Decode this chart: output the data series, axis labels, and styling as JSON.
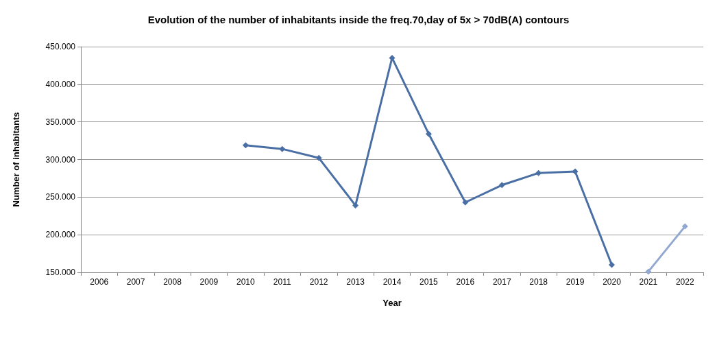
{
  "chart_data": {
    "type": "line",
    "title": "Evolution of the number of inhabitants inside the freq.70,day of 5x > 70dB(A) contours",
    "xlabel": "Year",
    "ylabel": "Number of inhabitants",
    "categories": [
      "2006",
      "2007",
      "2008",
      "2009",
      "2010",
      "2011",
      "2012",
      "2013",
      "2014",
      "2015",
      "2016",
      "2017",
      "2018",
      "2019",
      "2020",
      "2021",
      "2022"
    ],
    "series": [
      {
        "color": "#4a6fa5",
        "values": [
          null,
          null,
          null,
          null,
          319000,
          314000,
          302000,
          239000,
          435000,
          334000,
          243000,
          266000,
          282000,
          284000,
          160000,
          null,
          null
        ]
      },
      {
        "color": "#93a8d0",
        "values": [
          null,
          null,
          null,
          null,
          null,
          null,
          null,
          null,
          null,
          null,
          null,
          null,
          null,
          null,
          null,
          151000,
          211000
        ]
      }
    ],
    "ylim": [
      150000,
      450000
    ],
    "yticks": [
      {
        "value": 150000,
        "label": "150.000"
      },
      {
        "value": 200000,
        "label": "200.000"
      },
      {
        "value": 250000,
        "label": "250.000"
      },
      {
        "value": 300000,
        "label": "300.000"
      },
      {
        "value": 350000,
        "label": "350.000"
      },
      {
        "value": 400000,
        "label": "400.000"
      },
      {
        "value": 450000,
        "label": "450.000"
      }
    ],
    "grid": "y",
    "marker": "diamond",
    "line_style": "solid"
  }
}
